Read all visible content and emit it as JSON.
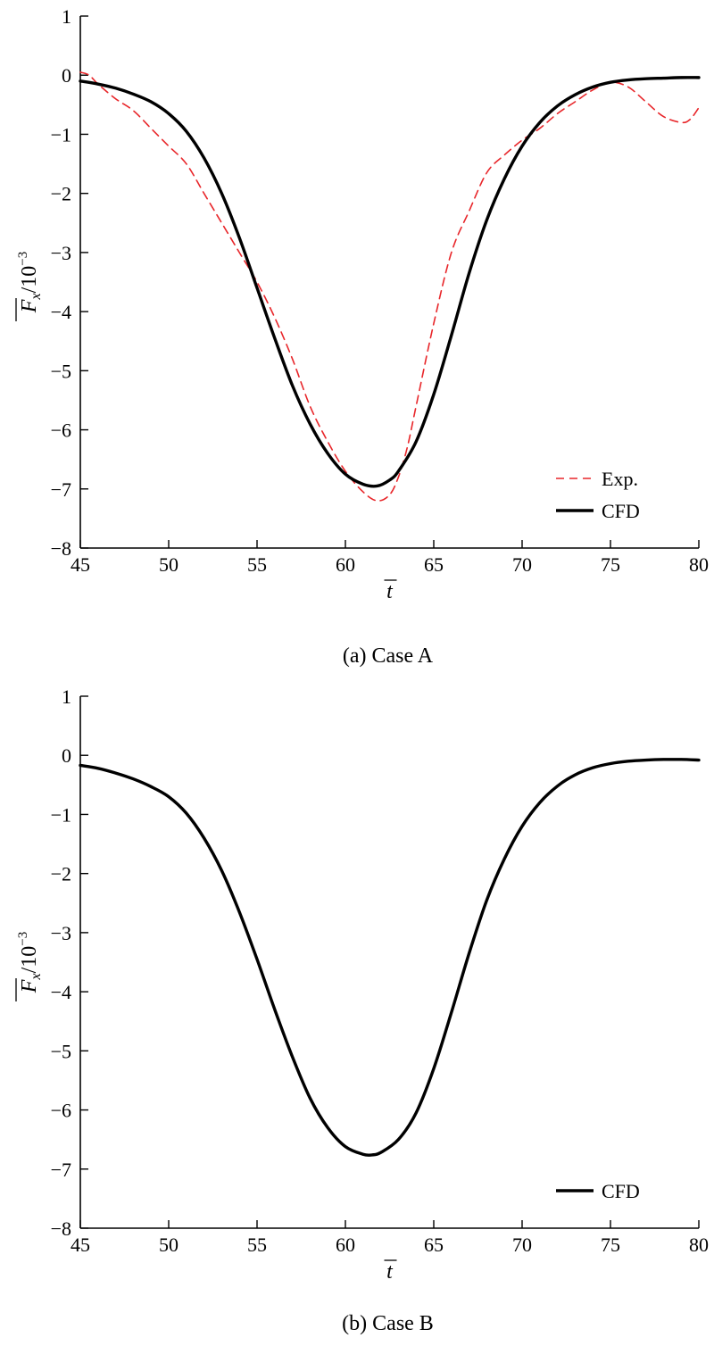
{
  "chart_data": [
    {
      "type": "line",
      "caption": "(a) Case A",
      "xlabel": "t",
      "ylabel_base": "F",
      "ylabel_sub": "x",
      "ylabel_unit": "/10",
      "ylabel_exp": "−3",
      "xlim": [
        45,
        80
      ],
      "ylim": [
        -8,
        1
      ],
      "xticks": [
        45,
        50,
        55,
        60,
        65,
        70,
        75,
        80
      ],
      "yticks": [
        1,
        0,
        -1,
        -2,
        -3,
        -4,
        -5,
        -6,
        -7,
        -8
      ],
      "xtick_labels": [
        "45",
        "50",
        "55",
        "60",
        "65",
        "70",
        "75",
        "80"
      ],
      "ytick_labels": [
        "1",
        "0",
        "−1",
        "−2",
        "−3",
        "−4",
        "−5",
        "−6",
        "−7",
        "−8"
      ],
      "grid": false,
      "legend_position": "bottom-right",
      "series": [
        {
          "name": "Exp.",
          "color": "#e8262a",
          "style": "dashed",
          "x": [
            45,
            45.5,
            46,
            47,
            48,
            49,
            50,
            51,
            52,
            53,
            54,
            55,
            56,
            57,
            58,
            59,
            60,
            61,
            61.8,
            62.5,
            63,
            63.5,
            64,
            65,
            66,
            67,
            68,
            69,
            70,
            71,
            72,
            73,
            74,
            75,
            76,
            77,
            78,
            79,
            79.5,
            80
          ],
          "y": [
            0.05,
            0.0,
            -0.15,
            -0.4,
            -0.6,
            -0.9,
            -1.2,
            -1.5,
            -2.0,
            -2.5,
            -3.0,
            -3.5,
            -4.1,
            -4.8,
            -5.6,
            -6.2,
            -6.7,
            -7.05,
            -7.2,
            -7.1,
            -6.8,
            -6.3,
            -5.6,
            -4.2,
            -3.0,
            -2.3,
            -1.65,
            -1.35,
            -1.1,
            -0.9,
            -0.65,
            -0.45,
            -0.25,
            -0.12,
            -0.2,
            -0.45,
            -0.7,
            -0.8,
            -0.75,
            -0.55
          ]
        },
        {
          "name": "CFD",
          "color": "#000000",
          "style": "solid",
          "x": [
            45,
            46,
            47,
            48,
            49,
            50,
            51,
            52,
            53,
            54,
            55,
            56,
            57,
            58,
            59,
            60,
            61,
            61.8,
            62.5,
            63,
            64,
            65,
            66,
            67,
            68,
            69,
            70,
            71,
            72,
            73,
            74,
            75,
            76,
            77,
            78,
            79,
            80
          ],
          "y": [
            -0.1,
            -0.15,
            -0.22,
            -0.32,
            -0.45,
            -0.65,
            -0.95,
            -1.4,
            -2.0,
            -2.75,
            -3.6,
            -4.45,
            -5.25,
            -5.9,
            -6.4,
            -6.75,
            -6.92,
            -6.95,
            -6.85,
            -6.7,
            -6.2,
            -5.4,
            -4.4,
            -3.35,
            -2.45,
            -1.75,
            -1.2,
            -0.8,
            -0.52,
            -0.33,
            -0.2,
            -0.12,
            -0.08,
            -0.06,
            -0.05,
            -0.04,
            -0.04
          ]
        }
      ]
    },
    {
      "type": "line",
      "caption": "(b) Case B",
      "xlabel": "t",
      "ylabel_base": "F",
      "ylabel_sub": "x",
      "ylabel_unit": "/10",
      "ylabel_exp": "−3",
      "xlim": [
        45,
        80
      ],
      "ylim": [
        -8,
        1
      ],
      "xticks": [
        45,
        50,
        55,
        60,
        65,
        70,
        75,
        80
      ],
      "yticks": [
        1,
        0,
        -1,
        -2,
        -3,
        -4,
        -5,
        -6,
        -7,
        -8
      ],
      "xtick_labels": [
        "45",
        "50",
        "55",
        "60",
        "65",
        "70",
        "75",
        "80"
      ],
      "ytick_labels": [
        "1",
        "0",
        "−1",
        "−2",
        "−3",
        "−4",
        "−5",
        "−6",
        "−7",
        "−8"
      ],
      "grid": false,
      "legend_position": "bottom-right",
      "series": [
        {
          "name": "CFD",
          "color": "#000000",
          "style": "solid",
          "x": [
            45,
            46,
            47,
            48,
            49,
            50,
            51,
            52,
            53,
            54,
            55,
            56,
            57,
            58,
            59,
            60,
            61,
            61.5,
            62,
            63,
            64,
            65,
            66,
            67,
            68,
            69,
            70,
            71,
            72,
            73,
            74,
            75,
            76,
            77,
            78,
            79,
            80
          ],
          "y": [
            -0.17,
            -0.22,
            -0.3,
            -0.4,
            -0.53,
            -0.7,
            -0.98,
            -1.4,
            -1.95,
            -2.65,
            -3.45,
            -4.3,
            -5.1,
            -5.8,
            -6.3,
            -6.62,
            -6.75,
            -6.76,
            -6.72,
            -6.5,
            -6.05,
            -5.3,
            -4.35,
            -3.35,
            -2.45,
            -1.75,
            -1.2,
            -0.8,
            -0.52,
            -0.33,
            -0.21,
            -0.14,
            -0.1,
            -0.08,
            -0.07,
            -0.07,
            -0.08
          ]
        }
      ]
    }
  ]
}
